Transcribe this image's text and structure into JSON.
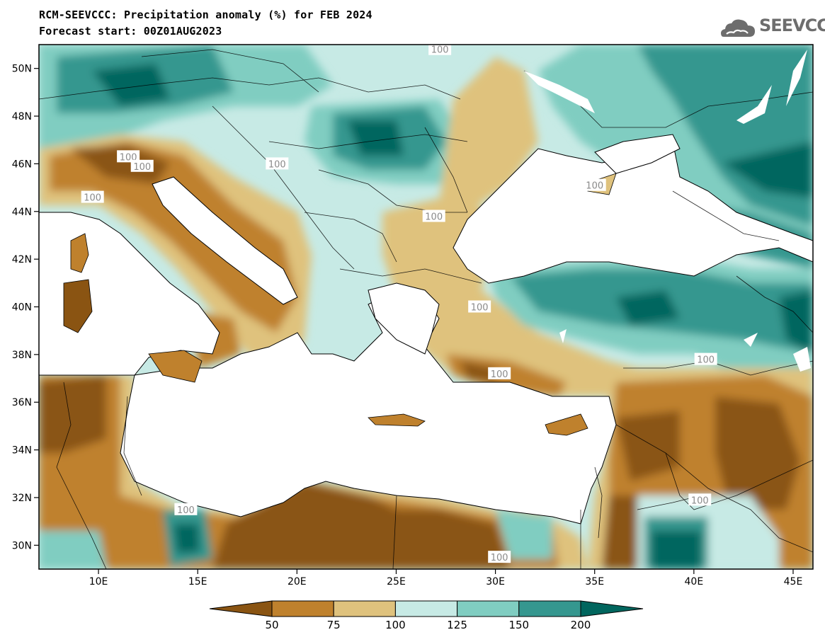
{
  "title_line1": "RCM-SEEVCCC: Precipitation anomaly (%) for FEB 2024",
  "title_line2": "Forecast start: 00Z01AUG2023",
  "logo": {
    "text": "SEEVCCC",
    "icon": "cloud-logo-icon",
    "color": "#6d6d6d"
  },
  "map": {
    "lon_range": [
      7,
      46
    ],
    "lat_range": [
      29,
      51
    ],
    "lon_labels": [
      "10E",
      "15E",
      "20E",
      "25E",
      "30E",
      "35E",
      "40E",
      "45E"
    ],
    "lon_ticks": [
      10,
      15,
      20,
      25,
      30,
      35,
      40,
      45
    ],
    "lat_labels": [
      "50N",
      "48N",
      "46N",
      "44N",
      "42N",
      "40N",
      "38N",
      "36N",
      "34N",
      "32N",
      "30N"
    ],
    "lat_ticks": [
      50,
      48,
      46,
      44,
      42,
      40,
      38,
      36,
      34,
      32,
      30
    ],
    "contour_labels": [
      {
        "text": "100",
        "lon": 27.2,
        "lat": 50.8
      },
      {
        "text": "100",
        "lon": 11.5,
        "lat": 46.3
      },
      {
        "text": "100",
        "lon": 19.0,
        "lat": 46.0
      },
      {
        "text": "100",
        "lon": 12.2,
        "lat": 45.9
      },
      {
        "text": "100",
        "lon": 9.7,
        "lat": 44.6
      },
      {
        "text": "100",
        "lon": 26.9,
        "lat": 43.8
      },
      {
        "text": "100",
        "lon": 35.0,
        "lat": 45.1
      },
      {
        "text": "100",
        "lon": 29.2,
        "lat": 40.0
      },
      {
        "text": "100",
        "lon": 30.2,
        "lat": 37.2
      },
      {
        "text": "100",
        "lon": 40.6,
        "lat": 37.8
      },
      {
        "text": "100",
        "lon": 14.4,
        "lat": 31.5
      },
      {
        "text": "100",
        "lon": 30.2,
        "lat": 29.5
      },
      {
        "text": "100",
        "lon": 40.3,
        "lat": 31.9
      }
    ]
  },
  "colorbar": {
    "labels": [
      "50",
      "75",
      "100",
      "125",
      "150",
      "200"
    ],
    "colors": [
      "#8a5412",
      "#bf812d",
      "#dfc27d",
      "#c7eae5",
      "#80cdc1",
      "#35978f",
      "#01665e"
    ]
  },
  "colors": {
    "dry2": "#8a5412",
    "dry1": "#bf812d",
    "dry0": "#dfc27d",
    "wet0": "#c7eae5",
    "wet1": "#80cdc1",
    "wet2": "#35978f",
    "wet3": "#01665e",
    "contour": "#a8a8a8"
  }
}
